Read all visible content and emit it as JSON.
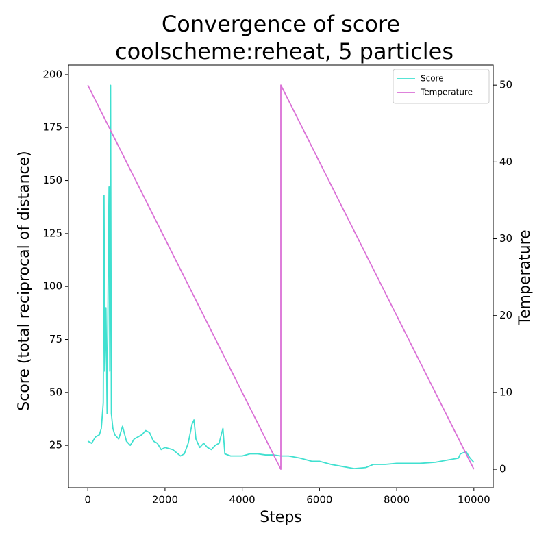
{
  "chart_data": {
    "type": "line",
    "title": "Convergence of score",
    "subtitle": "coolscheme:reheat, 5 particles",
    "x_label": "Steps",
    "y_label": "Score (total reciprocal of distance)",
    "y2_label": "Temperature",
    "xlim": [
      -500,
      10500
    ],
    "xticks": [
      0,
      2000,
      4000,
      6000,
      8000,
      10000
    ],
    "ylim": [
      5,
      204.5
    ],
    "yticks": [
      25,
      50,
      75,
      100,
      125,
      150,
      175,
      200
    ],
    "y2lim": [
      -2.4,
      52.6
    ],
    "y2ticks": [
      0,
      10,
      20,
      30,
      40,
      50
    ],
    "legend": "upper right",
    "series": [
      {
        "name": "Score",
        "color": "#40e0d0",
        "axis": "y",
        "x": [
          0,
          100,
          200,
          300,
          350,
          400,
          420,
          440,
          470,
          500,
          530,
          550,
          570,
          590,
          610,
          650,
          700,
          800,
          900,
          1000,
          1100,
          1200,
          1300,
          1400,
          1500,
          1600,
          1700,
          1800,
          1900,
          2000,
          2200,
          2400,
          2500,
          2600,
          2700,
          2750,
          2800,
          2900,
          3000,
          3100,
          3200,
          3300,
          3400,
          3500,
          3550,
          3700,
          3900,
          4000,
          4200,
          4400,
          4600,
          4800,
          5000,
          5200,
          5500,
          5800,
          6000,
          6300,
          6600,
          6900,
          7200,
          7400,
          7700,
          8000,
          8300,
          8600,
          9000,
          9300,
          9600,
          9650,
          9800,
          9900,
          10000
        ],
        "values": [
          27,
          26,
          29,
          30,
          33,
          45,
          143,
          60,
          90,
          40,
          110,
          147,
          60,
          195,
          40,
          33,
          30,
          28,
          34,
          27,
          25,
          28,
          29,
          30,
          32,
          31,
          27,
          26,
          23,
          24,
          23,
          20,
          21,
          26,
          35,
          37,
          28,
          24,
          26,
          24,
          23,
          25,
          26,
          33,
          21,
          20,
          20,
          20,
          21,
          21,
          20.5,
          20.5,
          20,
          20,
          19,
          17.5,
          17.5,
          16,
          15,
          14,
          14.5,
          16,
          16,
          16.5,
          16.5,
          16.5,
          17,
          18,
          19,
          21,
          22,
          19,
          17
        ]
      },
      {
        "name": "Temperature",
        "color": "#da70d6",
        "axis": "y2",
        "x": [
          0,
          5000,
          5000,
          10000
        ],
        "values": [
          50,
          0,
          50,
          0
        ]
      }
    ]
  }
}
